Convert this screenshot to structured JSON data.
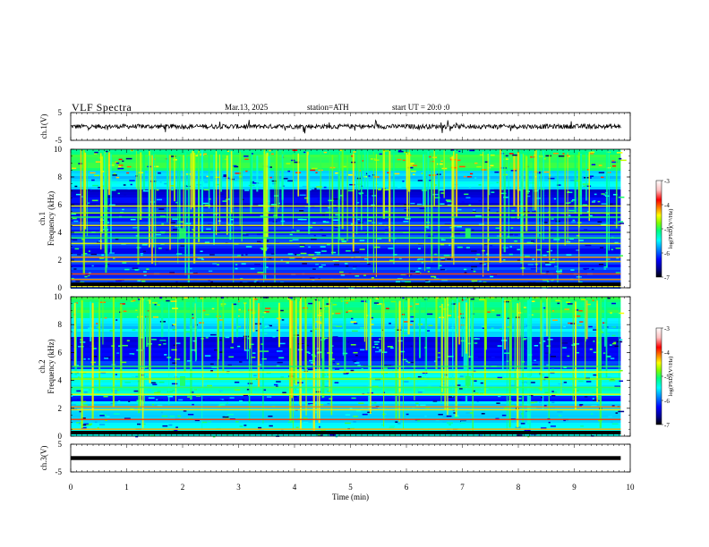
{
  "header": {
    "title": "VLF  Spectra",
    "date": "Mar.13, 2025",
    "station": "station=ATH",
    "start_ut": "start  UT  =   20:0  :0"
  },
  "colors": {
    "spectrogram_stops": [
      "#000000",
      "#00008b",
      "#0000ff",
      "#0080ff",
      "#00ffff",
      "#00ff80",
      "#80ff00",
      "#ffff00",
      "#ff8000",
      "#ff0000",
      "#ffc0c0",
      "#ffffff"
    ]
  },
  "chart_data": [
    {
      "type": "line",
      "panel": "ch1-waveform",
      "ylabel": "ch.1(V)",
      "ylim": [
        -5,
        5
      ],
      "yticks": [
        "5",
        "-5"
      ],
      "xlim": [
        0,
        10
      ],
      "mean_value": 0,
      "approx_amplitude": 1.5,
      "has_spikes": true
    },
    {
      "type": "heatmap",
      "panel": "ch1-spectrogram",
      "ylabel": "ch.1\nFrequency  (kHz)",
      "yticks": [
        "0",
        "2",
        "4",
        "6",
        "8",
        "10"
      ],
      "ylim": [
        0,
        10
      ],
      "xlim": [
        0,
        10
      ],
      "colorbar": {
        "label": "log(PSD)(V²/Hz)",
        "ticks": [
          "-3",
          "-4",
          "-5",
          "-6",
          "-7"
        ],
        "range": [
          -7,
          -3
        ]
      },
      "lines_khz": [
        0.1,
        0.6,
        1.0,
        1.9,
        2.2,
        3.2,
        3.6,
        4.0,
        4.5,
        5.1,
        5.4,
        5.9
      ],
      "burst_min": [
        2.0,
        7.1
      ]
    },
    {
      "type": "heatmap",
      "panel": "ch2-spectrogram",
      "ylabel": "ch.2\nFrequency  (kHz)",
      "yticks": [
        "0",
        "2",
        "4",
        "6",
        "8",
        "10"
      ],
      "ylim": [
        0,
        10
      ],
      "xlim": [
        0,
        10
      ],
      "colorbar": {
        "label": "log(PSD)(V²/Hz)",
        "ticks": [
          "-3",
          "-4",
          "-5",
          "-6",
          "-7"
        ],
        "range": [
          -7,
          -3
        ]
      },
      "lines_khz": [
        0.2,
        0.5,
        1.2,
        1.9,
        2.1,
        3.0,
        3.5,
        4.1,
        4.6,
        5.0
      ],
      "burst_min": [
        2.0,
        7.1
      ]
    },
    {
      "type": "line",
      "panel": "ch3-waveform",
      "ylabel": "ch.3(V)",
      "ylim": [
        -5,
        5
      ],
      "yticks": [
        "5",
        "-5"
      ],
      "xlim": [
        0,
        10
      ],
      "mean_value": 0,
      "approx_amplitude": 0.1,
      "has_spikes": false
    }
  ],
  "x_axis": {
    "label": "Time  (min)",
    "ticks": [
      "0",
      "1",
      "2",
      "3",
      "4",
      "5",
      "6",
      "7",
      "8",
      "9",
      "10"
    ],
    "xlim": [
      0,
      10
    ],
    "data_end_min": 9.83
  }
}
